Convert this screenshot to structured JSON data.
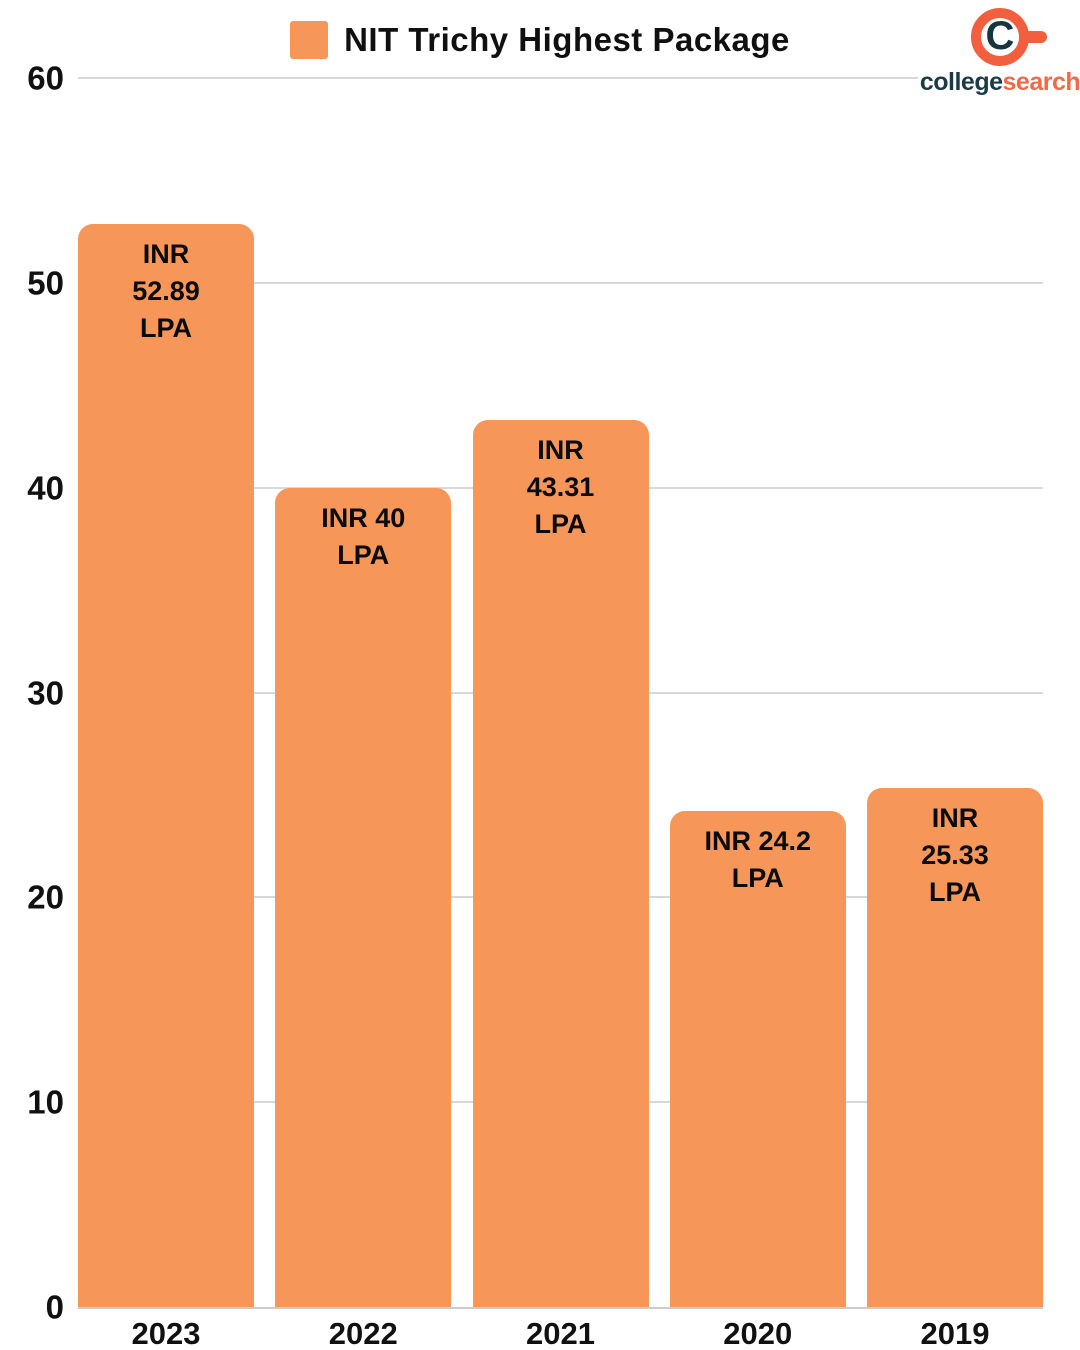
{
  "chart_data": {
    "type": "bar",
    "title": "NIT Trichy Highest Package",
    "categories": [
      "2023",
      "2022",
      "2021",
      "2020",
      "2019"
    ],
    "values": [
      52.89,
      40,
      43.31,
      24.2,
      25.33
    ],
    "bar_labels": [
      [
        "INR",
        "52.89",
        "LPA"
      ],
      [
        "INR 40",
        "LPA"
      ],
      [
        "INR",
        "43.31",
        "LPA"
      ],
      [
        "INR 24.2",
        "LPA"
      ],
      [
        "INR",
        "25.33",
        "LPA"
      ]
    ],
    "y_ticks": [
      0,
      10,
      20,
      30,
      40,
      50,
      60
    ],
    "ylim": [
      0,
      60
    ],
    "xlabel": "",
    "ylabel": "",
    "grid": true,
    "legend_position": "top-center",
    "bar_color": "#F79659",
    "grid_color": "#D8D8D8",
    "value_label_color": "#0B0B0B"
  },
  "logo": {
    "monogram": "C",
    "text_primary": "college",
    "text_secondary": "search",
    "ring_color": "#F15F3E",
    "monogram_color": "#16353F",
    "text_primary_color": "#1B3C46",
    "text_secondary_color": "#EF6A45"
  }
}
